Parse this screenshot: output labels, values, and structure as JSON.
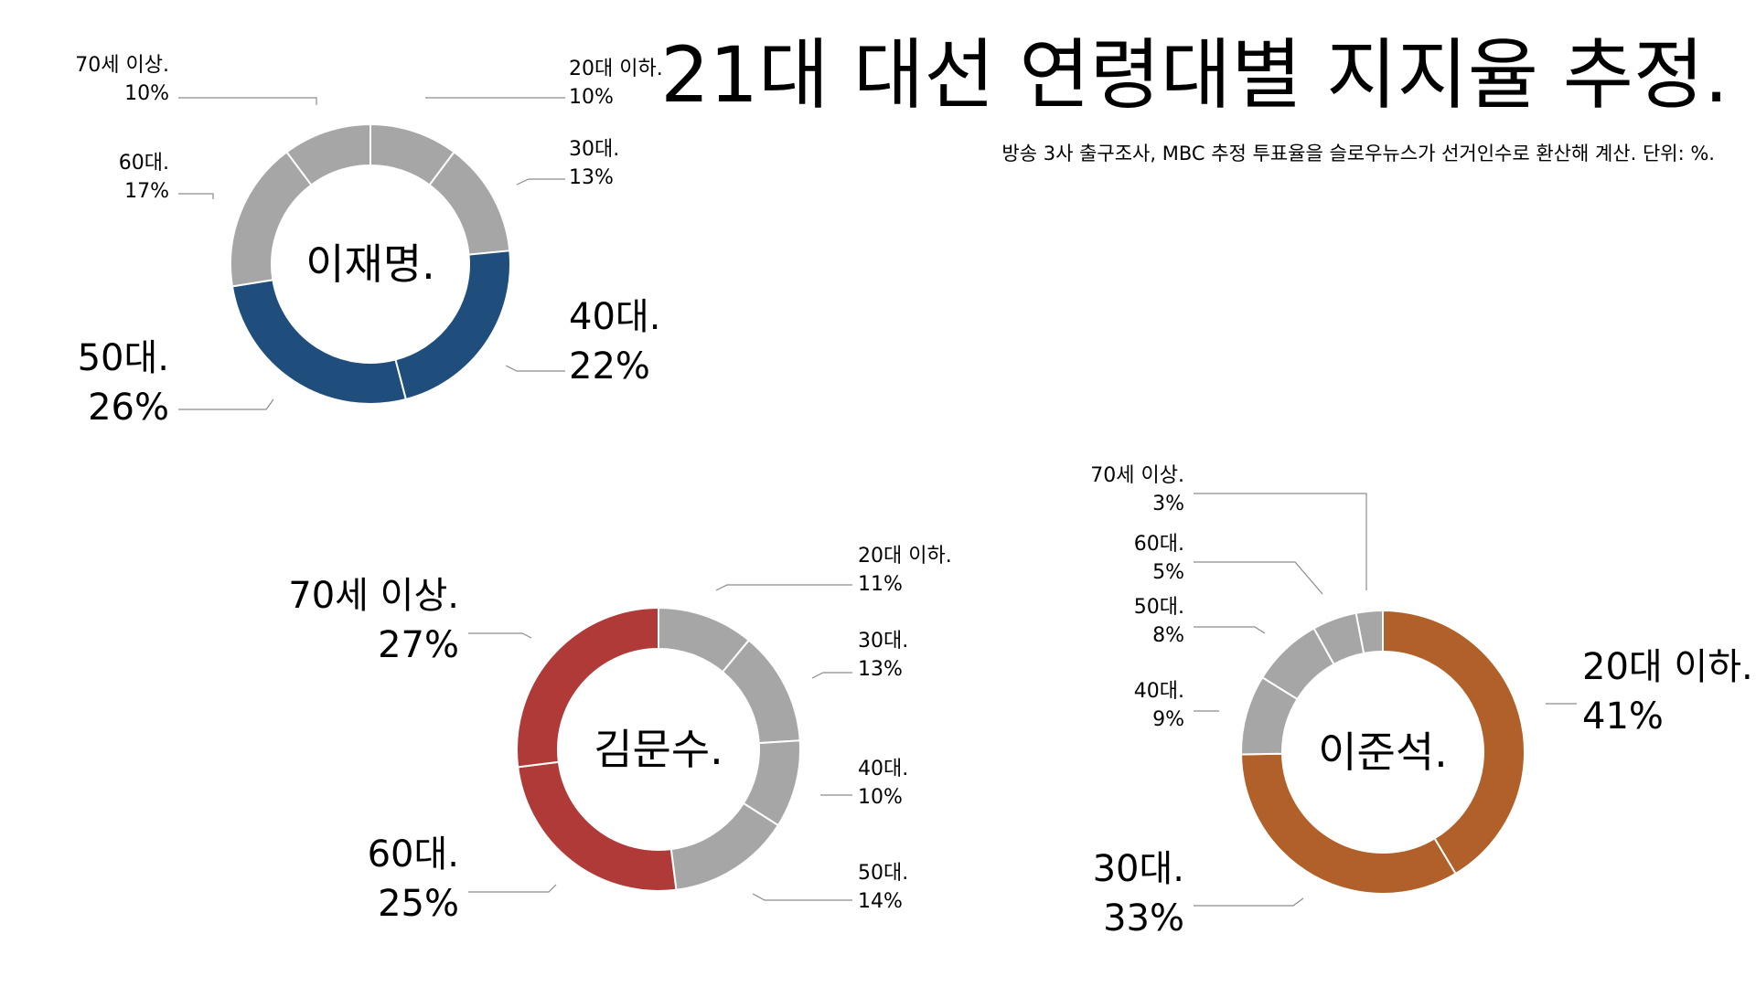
{
  "title": "21대 대선 연령대별 지지율 추정.",
  "subtitle": "방송 3사 출구조사, MBC 추정 투표율을 슬로우뉴스가 선거인수로 환산해 계산.  단위: %.",
  "colors": {
    "neutral": "#a6a6a6",
    "divider": "#ffffff",
    "text": "#000000",
    "leader": "#8c8c8c"
  },
  "chart_data": [
    {
      "type": "pie",
      "title": "이재명.",
      "highlight_color": "#1f4e7d",
      "categories": [
        "20대 이하.",
        "30대.",
        "40대.",
        "50대.",
        "60대.",
        "70세 이상."
      ],
      "values": [
        10,
        13,
        22,
        26,
        17,
        10
      ],
      "highlight": [
        false,
        false,
        true,
        true,
        false,
        false
      ],
      "value_labels": [
        "10%",
        "13%",
        "22%",
        "26%",
        "17%",
        "10%"
      ]
    },
    {
      "type": "pie",
      "title": "김문수.",
      "highlight_color": "#b03a38",
      "categories": [
        "20대 이하.",
        "30대.",
        "40대.",
        "50대.",
        "60대.",
        "70세 이상."
      ],
      "values": [
        11,
        13,
        10,
        14,
        25,
        27
      ],
      "highlight": [
        false,
        false,
        false,
        false,
        true,
        true
      ],
      "value_labels": [
        "11%",
        "13%",
        "10%",
        "14%",
        "25%",
        "27%"
      ]
    },
    {
      "type": "pie",
      "title": "이준석.",
      "highlight_color": "#b06028",
      "categories": [
        "20대 이하.",
        "30대.",
        "40대.",
        "50대.",
        "60대.",
        "70세 이상."
      ],
      "values": [
        41,
        33,
        9,
        8,
        5,
        3
      ],
      "highlight": [
        true,
        true,
        false,
        false,
        false,
        false
      ],
      "value_labels": [
        "41%",
        "33%",
        "9%",
        "8%",
        "5%",
        "3%"
      ]
    }
  ]
}
